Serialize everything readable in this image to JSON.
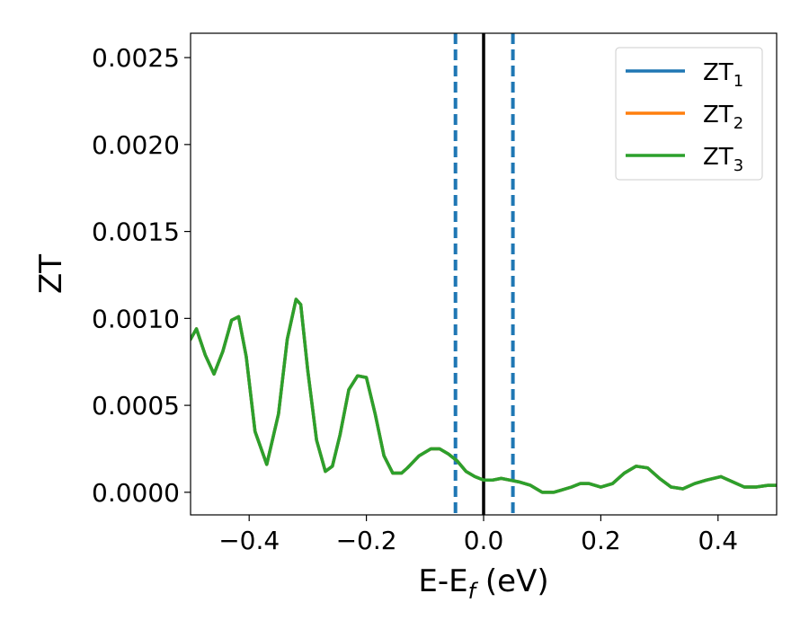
{
  "chart_data": {
    "type": "line",
    "xlabel": "E-E",
    "xlabel_sub": "f",
    "xlabel_unit": " (eV)",
    "ylabel": "ZT",
    "xlim": [
      -0.5,
      0.5
    ],
    "ylim": [
      -0.00013,
      0.00264
    ],
    "xticks": [
      -0.4,
      -0.2,
      0.0,
      0.2,
      0.4
    ],
    "xtick_labels": [
      "−0.4",
      "−0.2",
      "0.0",
      "0.2",
      "0.4"
    ],
    "yticks": [
      0.0,
      0.0005,
      0.001,
      0.0015,
      0.002,
      0.0025
    ],
    "ytick_labels": [
      "0.0000",
      "0.0005",
      "0.0010",
      "0.0015",
      "0.0020",
      "0.0025"
    ],
    "grid": false,
    "legend_position": "top-right",
    "vertical_lines": [
      {
        "x": -0.048,
        "style": "dashed",
        "color": "#1f77b4"
      },
      {
        "x": 0.0,
        "style": "solid",
        "color": "#000000"
      },
      {
        "x": 0.05,
        "style": "dashed",
        "color": "#1f77b4"
      }
    ],
    "series": [
      {
        "name": "ZT",
        "subscript": "1",
        "color": "#1f77b4"
      },
      {
        "name": "ZT",
        "subscript": "2",
        "color": "#ff7f0e"
      },
      {
        "name": "ZT",
        "subscript": "3",
        "color": "#2ca02c"
      }
    ],
    "x": [
      -0.5,
      -0.49,
      -0.475,
      -0.46,
      -0.445,
      -0.43,
      -0.418,
      -0.405,
      -0.39,
      -0.37,
      -0.35,
      -0.335,
      -0.32,
      -0.312,
      -0.3,
      -0.285,
      -0.27,
      -0.258,
      -0.245,
      -0.23,
      -0.215,
      -0.2,
      -0.185,
      -0.17,
      -0.155,
      -0.14,
      -0.13,
      -0.11,
      -0.09,
      -0.075,
      -0.06,
      -0.045,
      -0.03,
      -0.015,
      0.0,
      0.015,
      0.03,
      0.045,
      0.06,
      0.08,
      0.1,
      0.12,
      0.13,
      0.15,
      0.165,
      0.18,
      0.2,
      0.22,
      0.24,
      0.26,
      0.28,
      0.3,
      0.32,
      0.34,
      0.36,
      0.38,
      0.405,
      0.425,
      0.445,
      0.465,
      0.485,
      0.5
    ],
    "y": [
      0.00088,
      0.00094,
      0.00079,
      0.00068,
      0.00081,
      0.00099,
      0.00101,
      0.00078,
      0.00035,
      0.00016,
      0.00045,
      0.00088,
      0.00111,
      0.00108,
      0.0007,
      0.0003,
      0.00012,
      0.00015,
      0.00033,
      0.00059,
      0.00067,
      0.00066,
      0.00045,
      0.00021,
      0.00011,
      0.00011,
      0.00014,
      0.00021,
      0.00025,
      0.00025,
      0.00022,
      0.00018,
      0.00012,
      9e-05,
      7e-05,
      7e-05,
      8e-05,
      7e-05,
      6e-05,
      4e-05,
      0.0,
      0.0,
      1e-05,
      3e-05,
      5e-05,
      5e-05,
      3e-05,
      5e-05,
      0.00011,
      0.00015,
      0.00014,
      8e-05,
      3e-05,
      2e-05,
      5e-05,
      7e-05,
      9e-05,
      6e-05,
      3e-05,
      3e-05,
      4e-05,
      4e-05
    ]
  }
}
